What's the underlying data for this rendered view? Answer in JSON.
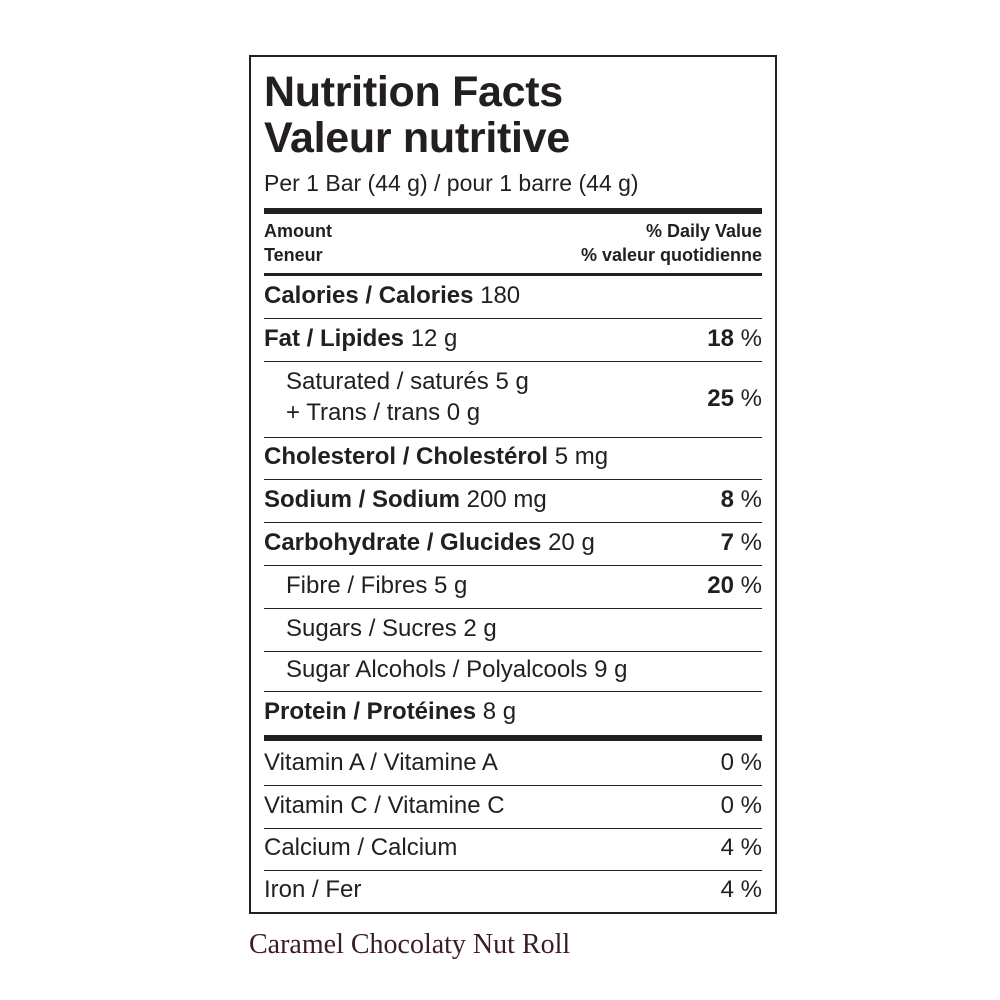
{
  "title_en": "Nutrition Facts",
  "title_fr": "Valeur nutritive",
  "serving": "Per 1 Bar (44 g) / pour 1 barre (44 g)",
  "header": {
    "amount": "Amount",
    "teneur": "Teneur",
    "daily_value": "% Daily Value",
    "valeur_quotidienne": "% valeur quotidienne"
  },
  "calories": {
    "label": "Calories / Calories",
    "value": "180"
  },
  "fat": {
    "label": "Fat / Lipides",
    "amount": "12 g",
    "dv": "18",
    "pct": "%"
  },
  "saturated": {
    "line1": "Saturated / saturés 5 g",
    "line2": "+ Trans / trans 0 g",
    "dv": "25",
    "pct": "%"
  },
  "cholesterol": {
    "label": "Cholesterol / Cholestérol",
    "amount": "5 mg"
  },
  "sodium": {
    "label": "Sodium / Sodium",
    "amount": "200 mg",
    "dv": "8",
    "pct": "%"
  },
  "carbohydrate": {
    "label": "Carbohydrate / Glucides",
    "amount": "20 g",
    "dv": "7",
    "pct": "%"
  },
  "fibre": {
    "label": "Fibre / Fibres 5 g",
    "dv": "20",
    "pct": "%"
  },
  "sugars": {
    "label": "Sugars / Sucres 2 g"
  },
  "sugar_alcohols": {
    "label": "Sugar Alcohols / Polyalcools 9 g"
  },
  "protein": {
    "label": "Protein / Protéines",
    "amount": "8 g"
  },
  "vitamin_a": {
    "label": "Vitamin A / Vitamine A",
    "dv": "0 %"
  },
  "vitamin_c": {
    "label": "Vitamin C / Vitamine C",
    "dv": "0 %"
  },
  "calcium": {
    "label": "Calcium / Calcium",
    "dv": "4 %"
  },
  "iron": {
    "label": "Iron / Fer",
    "dv": "4 %"
  },
  "product_name": "Caramel Chocolaty Nut Roll",
  "colors": {
    "ink": "#231f20",
    "caption": "#3a1f22"
  }
}
